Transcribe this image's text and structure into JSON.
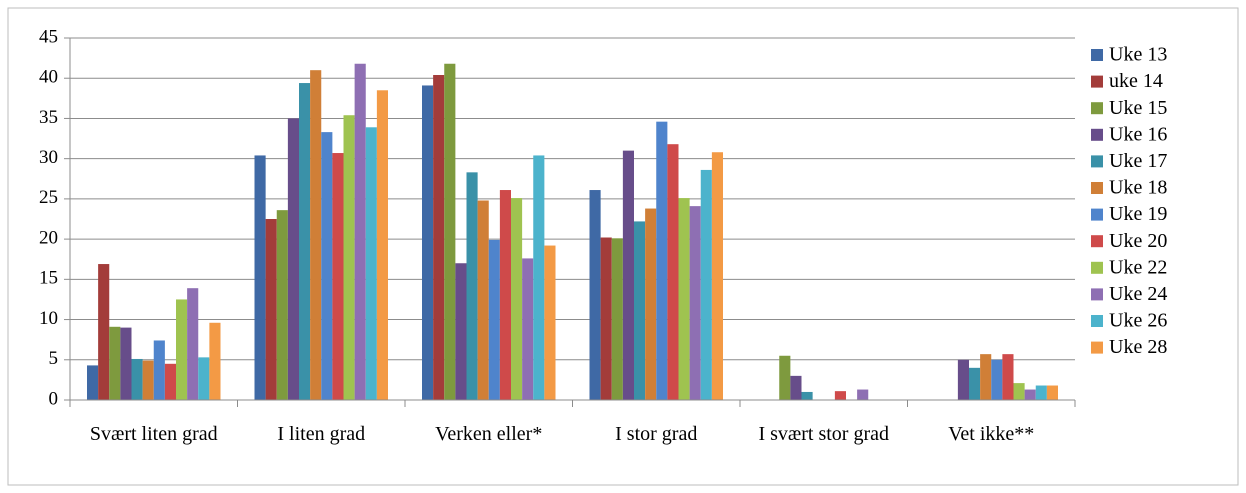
{
  "chart_data": {
    "type": "bar",
    "categories": [
      "Svært liten grad",
      "I liten grad",
      "Verken eller*",
      "I stor grad",
      "I svært stor grad",
      "Vet ikke**"
    ],
    "series": [
      {
        "name": "Uke 13",
        "color": "#3f69a5",
        "values": [
          4.3,
          30.4,
          39.1,
          26.1,
          0,
          0
        ]
      },
      {
        "name": "uke 14",
        "color": "#a33c3a",
        "values": [
          16.9,
          22.5,
          40.4,
          20.2,
          0,
          0
        ]
      },
      {
        "name": "Uke 15",
        "color": "#7e9a3e",
        "values": [
          9.1,
          23.6,
          41.8,
          20.1,
          5.5,
          0
        ]
      },
      {
        "name": "Uke 16",
        "color": "#674d8a",
        "values": [
          9.0,
          35.0,
          17.0,
          31.0,
          3.0,
          5.0
        ]
      },
      {
        "name": "Uke 17",
        "color": "#3a91a8",
        "values": [
          5.1,
          39.4,
          28.3,
          22.2,
          1.0,
          4.0
        ]
      },
      {
        "name": "Uke 18",
        "color": "#d07f37",
        "values": [
          4.9,
          41.0,
          24.8,
          23.8,
          0,
          5.7
        ]
      },
      {
        "name": "Uke 19",
        "color": "#4f84cc",
        "values": [
          7.4,
          33.3,
          19.9,
          34.6,
          0,
          5.0
        ]
      },
      {
        "name": "Uke 20",
        "color": "#cf4a4a",
        "values": [
          4.5,
          30.7,
          26.1,
          31.8,
          1.1,
          5.7
        ]
      },
      {
        "name": "Uke 22",
        "color": "#9fc350",
        "values": [
          12.5,
          35.4,
          25.1,
          25.1,
          0,
          2.1
        ]
      },
      {
        "name": "Uke 24",
        "color": "#8e6fb3",
        "values": [
          13.9,
          41.8,
          17.6,
          24.1,
          1.3,
          1.3
        ]
      },
      {
        "name": "Uke 26",
        "color": "#4cb3cc",
        "values": [
          5.3,
          33.9,
          30.4,
          28.6,
          0,
          1.8
        ]
      },
      {
        "name": "Uke 28",
        "color": "#f39a45",
        "values": [
          9.6,
          38.5,
          19.2,
          30.8,
          0,
          1.8
        ]
      }
    ],
    "ylim": [
      0,
      45
    ],
    "yticks": [
      0,
      5,
      10,
      15,
      20,
      25,
      30,
      35,
      40,
      45
    ],
    "grid": true,
    "legend": "right"
  }
}
